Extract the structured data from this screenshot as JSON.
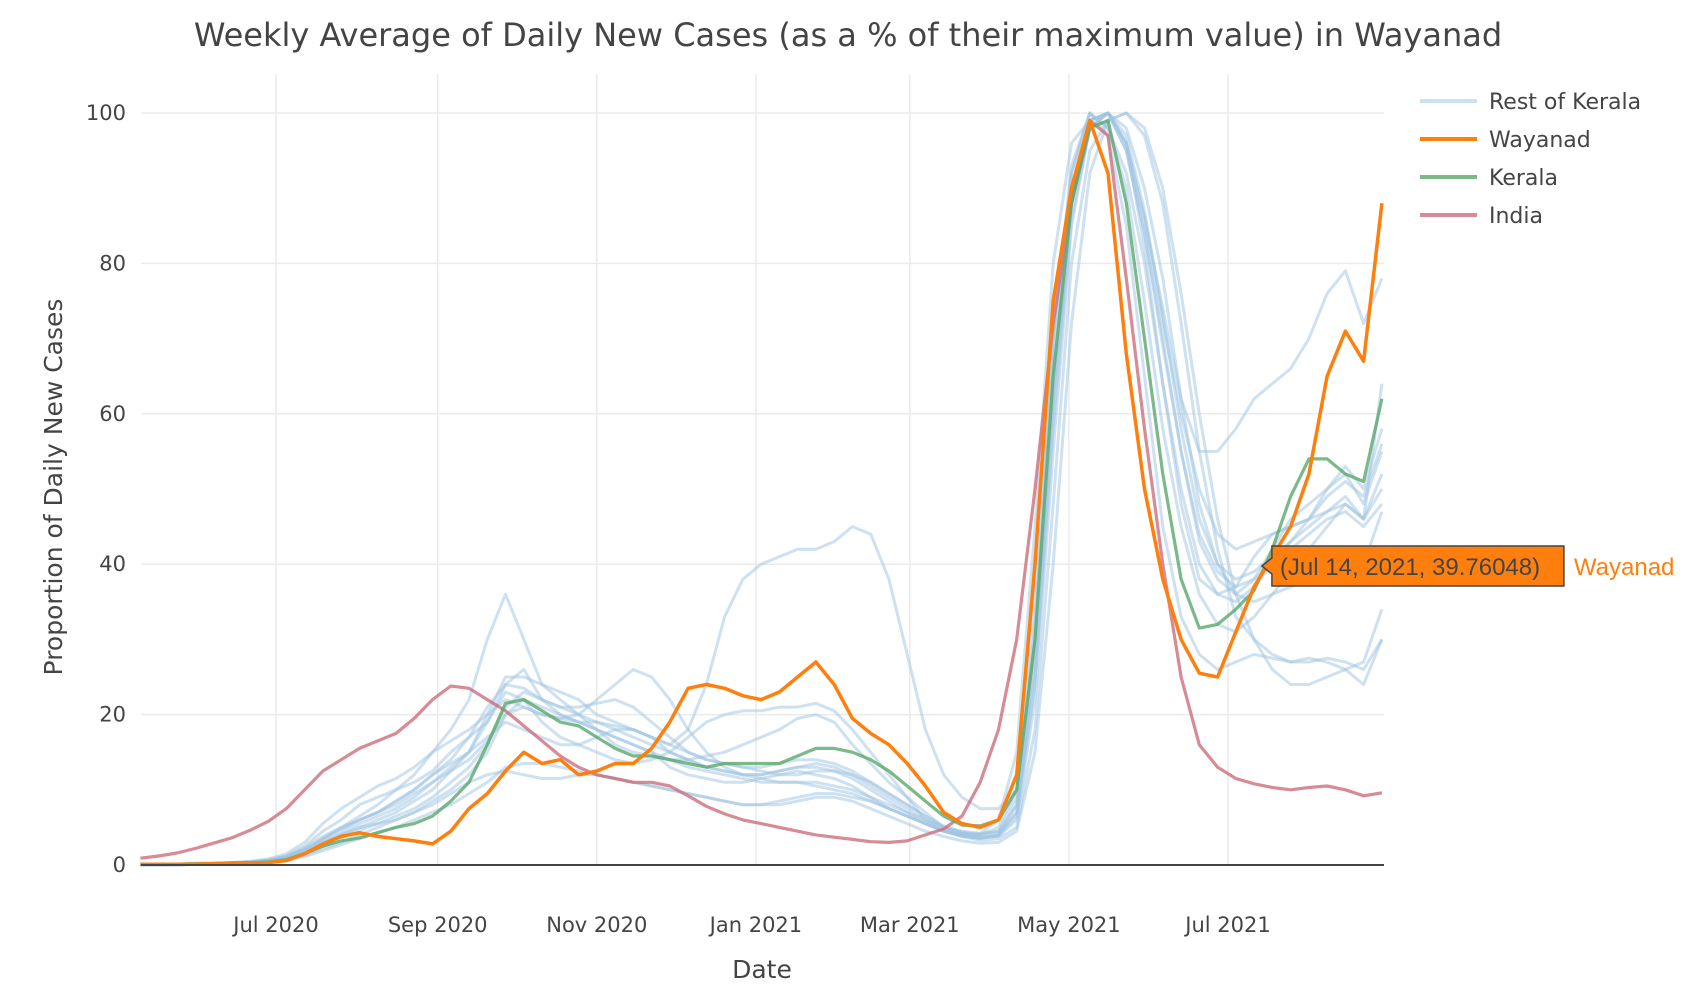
{
  "colors": {
    "rest_of_kerala": "#9ec3e2",
    "wayanad": "#ff7f0e",
    "kerala": "#5aa86c",
    "india": "#cc6e7c",
    "grid": "#ebebeb",
    "text": "#444444"
  },
  "chart_data": {
    "type": "line",
    "title": "Weekly Average of Daily New Cases (as a % of their maximum value) in Wayanad",
    "xlabel": "Date",
    "ylabel": "Proportion of Daily New Cases",
    "xlim": [
      "2020-05-10",
      "2021-08-30"
    ],
    "ylim": [
      0,
      105
    ],
    "grid": true,
    "legend_position": "top-right",
    "x_ticks": [
      {
        "date": "2020-07-01",
        "label": "Jul 2020"
      },
      {
        "date": "2020-09-01",
        "label": "Sep 2020"
      },
      {
        "date": "2020-11-01",
        "label": "Nov 2020"
      },
      {
        "date": "2021-01-01",
        "label": "Jan 2021"
      },
      {
        "date": "2021-03-01",
        "label": "Mar 2021"
      },
      {
        "date": "2021-05-01",
        "label": "May 2021"
      },
      {
        "date": "2021-07-01",
        "label": "Jul 2021"
      }
    ],
    "y_ticks": [
      {
        "value": 0,
        "label": "0"
      },
      {
        "value": 20,
        "label": "20"
      },
      {
        "value": 40,
        "label": "40"
      },
      {
        "value": 60,
        "label": "60"
      },
      {
        "value": 80,
        "label": "80"
      },
      {
        "value": 100,
        "label": "100"
      }
    ],
    "x_start": "2020-05-10",
    "x_step_days": 7,
    "legend": [
      {
        "name": "Rest of Kerala",
        "key": "rest_of_kerala"
      },
      {
        "name": "Wayanad",
        "key": "wayanad"
      },
      {
        "name": "Kerala",
        "key": "kerala"
      },
      {
        "name": "India",
        "key": "india"
      }
    ],
    "series": [
      {
        "name": "Wayanad",
        "key": "wayanad",
        "values": [
          0.1,
          0.1,
          0.1,
          0.1,
          0.2,
          0.2,
          0.3,
          0.3,
          0.6,
          1.5,
          2.8,
          3.8,
          4.3,
          3.8,
          3.5,
          3.2,
          2.8,
          4.5,
          7.5,
          9.5,
          12.5,
          15,
          13.5,
          14,
          12,
          12.5,
          13.5,
          13.5,
          15.5,
          19,
          23.5,
          24,
          23.5,
          22.5,
          22,
          23,
          25,
          27,
          24,
          19.5,
          17.5,
          16,
          13.5,
          10.5,
          7,
          5.5,
          5,
          6,
          12,
          40,
          75,
          90,
          99,
          92,
          68,
          50,
          38,
          30,
          25.5,
          25,
          31,
          37,
          41,
          45,
          52,
          65,
          71,
          67,
          88
        ]
      },
      {
        "name": "Kerala",
        "key": "kerala",
        "values": [
          0.1,
          0.1,
          0.1,
          0.2,
          0.2,
          0.3,
          0.3,
          0.4,
          0.7,
          1.5,
          2.5,
          3.2,
          3.6,
          4.3,
          5,
          5.5,
          6.5,
          8.5,
          11,
          16,
          21.5,
          22,
          20.5,
          19,
          18.5,
          17,
          15.5,
          14.5,
          14.5,
          14,
          13.5,
          13,
          13.5,
          13.5,
          13.5,
          13.5,
          14.5,
          15.5,
          15.5,
          15,
          14,
          12.5,
          10.5,
          8.5,
          6.5,
          5.3,
          5.2,
          6,
          10,
          30,
          65,
          88,
          98,
          99,
          88,
          70,
          52,
          38,
          31.5,
          32,
          34,
          36.5,
          42,
          49,
          54,
          54,
          52,
          51,
          62
        ]
      },
      {
        "name": "India",
        "key": "india",
        "values": [
          0.9,
          1.2,
          1.6,
          2.2,
          2.9,
          3.6,
          4.6,
          5.8,
          7.5,
          10,
          12.5,
          14,
          15.5,
          16.5,
          17.5,
          19.5,
          22,
          23.8,
          23.5,
          22,
          20.5,
          18.5,
          16.5,
          14.5,
          13,
          12,
          11.5,
          11,
          11,
          10.5,
          9.2,
          7.8,
          6.8,
          6,
          5.5,
          5,
          4.5,
          4,
          3.7,
          3.4,
          3.1,
          3,
          3.2,
          4,
          4.8,
          6.5,
          11,
          18,
          30,
          50,
          72,
          88,
          99,
          97,
          78,
          58,
          40,
          25,
          16,
          13,
          11.5,
          10.8,
          10.3,
          10,
          10.3,
          10.5,
          10,
          9.2,
          9.6
        ]
      }
    ],
    "rest_of_kerala": [
      [
        0,
        0,
        0.1,
        0.1,
        0.2,
        0.3,
        0.4,
        0.6,
        1.2,
        2.5,
        4.5,
        6,
        8,
        9,
        10,
        11,
        12.5,
        15,
        17,
        19,
        23,
        22,
        19,
        17,
        16,
        15,
        14,
        13.5,
        14,
        15,
        17,
        19,
        20,
        20.5,
        20.5,
        21,
        21,
        21.5,
        20.5,
        18,
        15,
        12,
        9,
        6,
        4.5,
        4,
        4.2,
        6,
        15,
        45,
        80,
        96,
        99,
        100,
        96,
        82,
        64,
        48,
        38,
        36,
        37,
        41,
        44,
        45,
        46,
        50,
        53,
        50,
        58
      ],
      [
        0,
        0,
        0.1,
        0.1,
        0.1,
        0.2,
        0.3,
        0.5,
        1,
        2,
        3.5,
        5,
        6.5,
        8,
        10,
        12,
        15,
        18,
        22,
        30,
        36,
        30,
        24,
        22,
        20,
        18,
        16,
        15,
        14.5,
        14,
        14,
        14.5,
        15,
        16,
        17,
        18,
        19.5,
        20,
        19,
        16,
        13.5,
        11,
        9,
        7,
        5,
        4.2,
        4,
        5,
        10,
        35,
        70,
        92,
        100,
        97,
        85,
        65,
        45,
        33,
        28,
        26,
        27,
        28,
        27.5,
        27,
        27.5,
        27,
        26,
        24,
        30
      ],
      [
        0,
        0,
        0.1,
        0.1,
        0.2,
        0.2,
        0.3,
        0.5,
        0.9,
        1.8,
        3,
        4.2,
        5.5,
        6.5,
        7.5,
        9,
        11,
        13,
        15,
        19,
        24,
        26,
        22,
        20,
        19,
        18,
        17,
        16,
        15,
        13,
        12,
        11.5,
        11,
        11,
        11.5,
        12,
        12.5,
        12,
        11.5,
        10.5,
        9,
        7.5,
        6.5,
        5.5,
        4.5,
        3.8,
        3.5,
        4,
        8,
        30,
        68,
        92,
        100,
        98,
        90,
        75,
        58,
        45,
        36,
        32,
        31,
        33,
        36,
        39,
        42,
        45,
        48,
        46,
        52
      ],
      [
        0,
        0,
        0.1,
        0.1,
        0.1,
        0.2,
        0.2,
        0.4,
        0.8,
        1.6,
        2.8,
        4,
        5,
        6,
        7,
        8.5,
        10,
        12.5,
        15,
        20,
        25,
        25,
        24,
        23,
        22,
        20,
        19,
        18,
        17,
        15,
        14,
        13,
        12.5,
        12,
        12,
        12.5,
        13,
        13,
        12.5,
        11.5,
        10,
        8.5,
        7,
        5.5,
        4.5,
        3.8,
        3.6,
        4,
        7,
        25,
        60,
        88,
        99,
        100,
        95,
        84,
        70,
        55,
        43,
        38,
        36,
        38,
        42,
        46,
        48,
        50,
        52,
        48,
        55
      ],
      [
        0,
        0,
        0.1,
        0.1,
        0.2,
        0.3,
        0.5,
        0.8,
        1.5,
        3,
        5.5,
        7.5,
        9,
        10.5,
        11.5,
        13,
        15,
        16.5,
        18,
        20,
        22,
        21,
        20,
        19.5,
        20,
        22,
        24,
        26,
        25,
        22,
        18,
        15,
        13,
        12,
        11.5,
        11,
        11,
        11,
        10.5,
        10,
        9,
        8,
        7,
        6,
        5,
        4.5,
        4.2,
        4.5,
        8,
        28,
        62,
        88,
        98,
        100,
        96,
        86,
        72,
        60,
        50,
        44,
        42,
        43,
        44,
        45,
        46,
        47,
        48,
        46,
        50
      ],
      [
        0,
        0,
        0,
        0.1,
        0.1,
        0.2,
        0.3,
        0.5,
        0.9,
        1.8,
        3,
        4,
        5,
        5.5,
        6,
        7,
        8.5,
        10,
        12,
        15,
        20,
        22,
        21,
        20,
        19,
        18,
        17,
        16,
        15,
        14,
        13,
        12.5,
        12,
        11.5,
        11,
        11,
        11,
        10.5,
        10,
        9.5,
        8.5,
        7.5,
        6.5,
        5.5,
        4.5,
        4,
        3.6,
        3.8,
        6,
        22,
        55,
        85,
        98,
        100,
        98,
        90,
        78,
        62,
        48,
        40,
        36,
        35,
        36,
        37,
        38,
        40,
        42,
        40,
        47
      ],
      [
        0,
        0,
        0,
        0.1,
        0.1,
        0.1,
        0.2,
        0.4,
        0.7,
        1.3,
        2.2,
        3,
        4,
        5,
        6,
        7,
        8,
        9.5,
        11,
        12,
        12.5,
        12,
        11.5,
        11.5,
        12,
        12,
        11.5,
        11,
        10.5,
        10,
        9.5,
        9,
        8.5,
        8,
        8,
        8.5,
        9,
        9.5,
        9.5,
        9,
        8.5,
        7.5,
        6.5,
        5.5,
        4.5,
        3.8,
        3.3,
        3.5,
        5,
        18,
        48,
        80,
        95,
        99,
        100,
        97,
        88,
        72,
        55,
        42,
        33,
        30,
        28,
        27,
        27,
        27.5,
        27,
        26,
        30
      ],
      [
        0,
        0,
        0.1,
        0.1,
        0.2,
        0.3,
        0.4,
        0.7,
        1.2,
        2.3,
        3.8,
        5,
        6,
        7,
        8.5,
        10,
        12,
        14,
        17,
        21,
        24,
        23.5,
        22,
        21,
        21,
        21.5,
        22,
        21,
        19,
        17,
        15,
        14,
        13.5,
        13,
        12.5,
        12,
        12,
        12.5,
        12.5,
        12,
        11,
        9.5,
        8,
        6.5,
        5,
        4.3,
        4,
        4.5,
        9,
        32,
        70,
        93,
        100,
        98,
        92,
        80,
        64,
        50,
        40,
        36,
        35,
        37,
        40,
        43,
        46,
        49,
        51,
        49,
        56
      ],
      [
        0,
        0,
        0,
        0.1,
        0.1,
        0.2,
        0.3,
        0.5,
        0.8,
        1.5,
        2.6,
        3.6,
        4.6,
        5.5,
        6.5,
        7.5,
        9,
        11,
        13,
        16,
        21,
        23,
        22,
        21,
        20,
        19,
        18,
        17,
        16,
        15,
        14,
        13,
        12.5,
        12,
        12,
        12.5,
        13,
        13.5,
        13,
        12,
        10.5,
        9,
        7.5,
        6,
        4.8,
        4,
        3.7,
        3.9,
        6.5,
        24,
        58,
        86,
        98,
        100,
        97,
        87,
        73,
        58,
        46,
        40,
        38,
        39,
        41,
        43,
        45,
        47,
        49,
        46,
        64
      ],
      [
        0,
        0,
        0.1,
        0.1,
        0.2,
        0.3,
        0.4,
        0.6,
        1,
        2,
        3.4,
        4.6,
        6,
        7,
        8.5,
        10,
        12,
        13.5,
        15,
        17,
        19,
        18,
        17,
        16,
        16,
        17,
        18,
        18,
        17,
        16,
        18,
        24,
        33,
        38,
        40,
        41,
        42,
        42,
        43,
        45,
        44,
        38,
        28,
        18,
        12,
        9,
        7.5,
        7.5,
        10,
        30,
        65,
        90,
        99,
        100,
        96,
        86,
        74,
        62,
        55,
        55,
        58,
        62,
        64,
        66,
        70,
        76,
        79,
        72,
        78
      ],
      [
        0,
        0,
        0,
        0.1,
        0.1,
        0.1,
        0.2,
        0.3,
        0.6,
        1.1,
        1.9,
        2.7,
        3.5,
        4.3,
        5,
        6,
        7,
        8,
        9.5,
        11,
        13,
        13.5,
        13.5,
        13,
        12.5,
        12,
        11.5,
        11,
        10.5,
        10,
        9.5,
        9,
        8.5,
        8,
        8,
        8,
        8.5,
        9,
        9,
        8.5,
        7.5,
        6.5,
        5.5,
        4.5,
        3.8,
        3.2,
        2.9,
        3,
        4.5,
        15,
        40,
        72,
        92,
        99,
        100,
        98,
        90,
        76,
        60,
        46,
        36,
        30,
        26,
        24,
        24,
        25,
        26,
        27,
        34
      ],
      [
        0,
        0,
        0.1,
        0.1,
        0.2,
        0.2,
        0.4,
        0.6,
        1.1,
        2.1,
        3.5,
        4.8,
        6,
        7,
        8,
        9.5,
        11,
        12.5,
        14,
        16.5,
        20,
        21,
        20,
        19.5,
        19,
        19,
        18.5,
        18,
        17,
        16,
        15,
        14,
        13.5,
        13,
        13,
        13.5,
        14,
        14,
        13.5,
        12.5,
        11,
        9.5,
        8,
        6.5,
        5.2,
        4.4,
        4,
        4.3,
        7,
        27,
        63,
        89,
        99,
        100,
        95,
        84,
        69,
        55,
        44,
        39,
        37,
        38,
        40,
        42,
        44,
        46,
        47,
        45,
        48
      ]
    ],
    "hover": {
      "series": "Wayanad",
      "date": "2021-07-14",
      "value": 39.76048,
      "label": "(Jul 14, 2021, 39.76048)",
      "name": "Wayanad"
    }
  }
}
